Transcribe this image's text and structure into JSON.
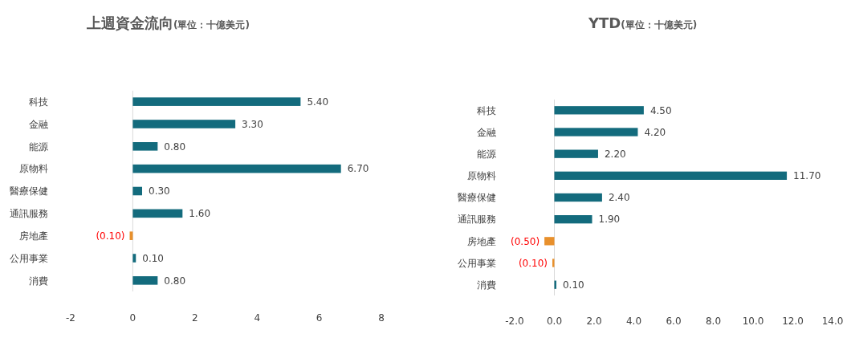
{
  "chart_data": [
    {
      "type": "bar",
      "orientation": "horizontal",
      "title": "上週資金流向",
      "subtitle": "(單位：十億美元)",
      "categories": [
        "科技",
        "金融",
        "能源",
        "原物料",
        "醫療保健",
        "通訊服務",
        "房地產",
        "公用事業",
        "消費"
      ],
      "values": [
        5.4,
        3.3,
        0.8,
        6.7,
        0.3,
        1.6,
        -0.1,
        0.1,
        0.8
      ],
      "colors": [
        "#136b7d",
        "#136b7d",
        "#136b7d",
        "#136b7d",
        "#136b7d",
        "#136b7d",
        "#e8902c",
        "#136b7d",
        "#136b7d"
      ],
      "value_labels": [
        "5.40",
        "3.30",
        "0.80",
        "6.70",
        "0.30",
        "1.60",
        "(0.10)",
        "0.10",
        "0.80"
      ],
      "xlim": [
        -2,
        8
      ],
      "xticks": [
        -2,
        0,
        2,
        4,
        6,
        8
      ]
    },
    {
      "type": "bar",
      "orientation": "horizontal",
      "title": "YTD",
      "subtitle": "(單位：十億美元)",
      "categories": [
        "科技",
        "金融",
        "能源",
        "原物料",
        "醫療保健",
        "通訊服務",
        "房地產",
        "公用事業",
        "消費"
      ],
      "values": [
        4.5,
        4.2,
        2.2,
        11.7,
        2.4,
        1.9,
        -0.5,
        -0.1,
        0.1
      ],
      "colors": [
        "#136b7d",
        "#136b7d",
        "#136b7d",
        "#136b7d",
        "#136b7d",
        "#136b7d",
        "#e8902c",
        "#e8902c",
        "#136b7d"
      ],
      "value_labels": [
        "4.50",
        "4.20",
        "2.20",
        "11.70",
        "2.40",
        "1.90",
        "(0.50)",
        "(0.10)",
        "0.10"
      ],
      "xlim": [
        -2,
        14
      ],
      "xticks": [
        {
          "value": -2,
          "label": "-2.0"
        },
        {
          "value": 0,
          "label": "0.0"
        },
        {
          "value": 2,
          "label": "2.0"
        },
        {
          "value": 4,
          "label": "4.0"
        },
        {
          "value": 6,
          "label": "6.0"
        },
        {
          "value": 8,
          "label": "8.0"
        },
        {
          "value": 10,
          "label": "10.0"
        },
        {
          "value": 12,
          "label": "12.0"
        },
        {
          "value": 14,
          "label": "14.0"
        }
      ]
    }
  ]
}
